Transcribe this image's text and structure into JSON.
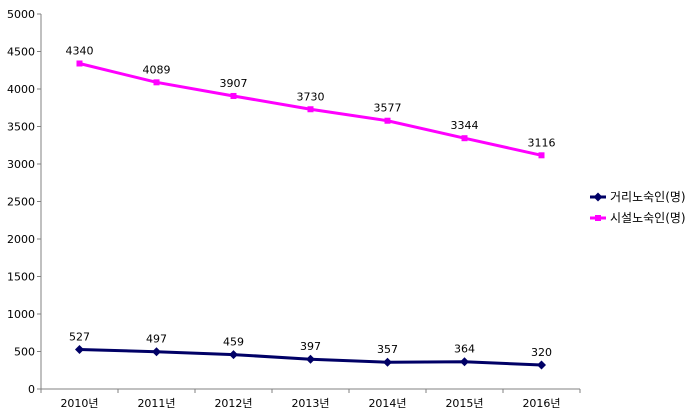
{
  "chart_data": {
    "type": "line",
    "title": "",
    "xlabel": "",
    "ylabel": "",
    "categories": [
      "2010년",
      "2011년",
      "2012년",
      "2013년",
      "2014년",
      "2015년",
      "2016년"
    ],
    "ylim": [
      0,
      5000
    ],
    "yticks": [
      0,
      500,
      1000,
      1500,
      2000,
      2500,
      3000,
      3500,
      4000,
      4500,
      5000
    ],
    "grid": false,
    "legend_position": "right",
    "series": [
      {
        "name": "거리노숙인(명)",
        "values": [
          527,
          497,
          459,
          397,
          357,
          364,
          320
        ],
        "color": "#000066",
        "marker": "diamond"
      },
      {
        "name": "시설노숙인(명)",
        "values": [
          4340,
          4089,
          3907,
          3730,
          3577,
          3344,
          3116
        ],
        "color": "#ff00ff",
        "marker": "square"
      }
    ]
  }
}
